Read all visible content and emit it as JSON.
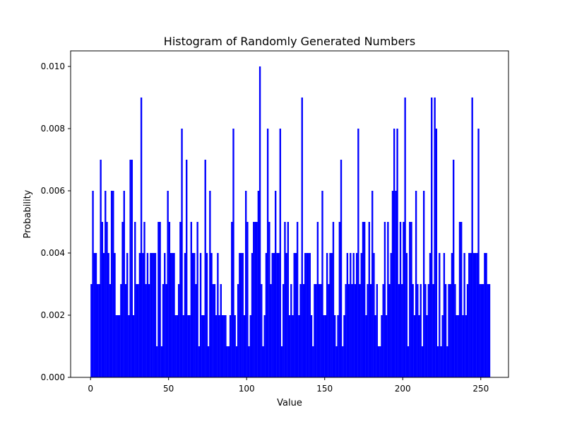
{
  "chart_data": {
    "type": "bar",
    "title": "Histogram of Randomly Generated Numbers",
    "xlabel": "Value",
    "ylabel": "Probability",
    "xlim": [
      -12.75,
      267.75
    ],
    "ylim": [
      0,
      0.0105
    ],
    "bin_start": 0,
    "bin_width": 1,
    "color": "#0000ff",
    "grid": false,
    "x_ticks": [
      0,
      50,
      100,
      150,
      200,
      250
    ],
    "x_tick_labels": [
      "0",
      "50",
      "100",
      "150",
      "200",
      "250"
    ],
    "y_ticks": [
      0,
      0.002,
      0.004,
      0.006,
      0.008,
      0.01
    ],
    "y_tick_labels": [
      "0.000",
      "0.002",
      "0.004",
      "0.006",
      "0.008",
      "0.010"
    ],
    "values": [
      0.003,
      0.006,
      0.004,
      0.004,
      0.003,
      0.003,
      0.007,
      0.005,
      0.004,
      0.006,
      0.005,
      0.004,
      0.003,
      0.006,
      0.006,
      0.004,
      0.002,
      0.002,
      0.002,
      0.003,
      0.005,
      0.006,
      0.003,
      0.004,
      0.002,
      0.007,
      0.007,
      0.002,
      0.005,
      0.003,
      0.003,
      0.004,
      0.009,
      0.004,
      0.005,
      0.003,
      0.004,
      0.003,
      0.004,
      0.004,
      0.004,
      0.004,
      0.001,
      0.005,
      0.005,
      0.001,
      0.003,
      0.004,
      0.003,
      0.006,
      0.005,
      0.004,
      0.004,
      0.004,
      0.002,
      0.002,
      0.003,
      0.005,
      0.008,
      0.002,
      0.004,
      0.007,
      0.002,
      0.002,
      0.005,
      0.004,
      0.004,
      0.003,
      0.005,
      0.001,
      0.004,
      0.002,
      0.002,
      0.007,
      0.004,
      0.001,
      0.006,
      0.004,
      0.003,
      0.003,
      0.002,
      0.004,
      0.002,
      0.003,
      0.002,
      0.002,
      0.002,
      0.001,
      0.001,
      0.002,
      0.005,
      0.008,
      0.002,
      0.001,
      0.003,
      0.004,
      0.004,
      0.004,
      0.002,
      0.006,
      0.005,
      0.001,
      0.002,
      0.004,
      0.005,
      0.005,
      0.005,
      0.006,
      0.01,
      0.003,
      0.001,
      0.002,
      0.004,
      0.008,
      0.005,
      0.003,
      0.004,
      0.004,
      0.006,
      0.004,
      0.004,
      0.008,
      0.001,
      0.003,
      0.005,
      0.004,
      0.005,
      0.002,
      0.003,
      0.002,
      0.004,
      0.004,
      0.005,
      0.002,
      0.003,
      0.009,
      0.003,
      0.004,
      0.004,
      0.004,
      0.004,
      0.002,
      0.001,
      0.003,
      0.003,
      0.005,
      0.003,
      0.003,
      0.006,
      0.002,
      0.002,
      0.004,
      0.003,
      0.004,
      0.004,
      0.005,
      0.002,
      0.001,
      0.002,
      0.005,
      0.007,
      0.001,
      0.002,
      0.003,
      0.004,
      0.003,
      0.004,
      0.003,
      0.004,
      0.003,
      0.004,
      0.008,
      0.003,
      0.004,
      0.005,
      0.005,
      0.002,
      0.003,
      0.005,
      0.003,
      0.006,
      0.004,
      0.002,
      0.003,
      0.001,
      0.001,
      0.002,
      0.003,
      0.005,
      0.002,
      0.005,
      0.003,
      0.004,
      0.006,
      0.008,
      0.006,
      0.008,
      0.003,
      0.005,
      0.003,
      0.005,
      0.009,
      0.004,
      0.001,
      0.005,
      0.005,
      0.003,
      0.002,
      0.006,
      0.003,
      0.002,
      0.003,
      0.001,
      0.006,
      0.003,
      0.002,
      0.003,
      0.004,
      0.009,
      0.003,
      0.009,
      0.008,
      0.001,
      0.004,
      0.001,
      0.002,
      0.004,
      0.003,
      0.001,
      0.003,
      0.003,
      0.004,
      0.007,
      0.003,
      0.002,
      0.002,
      0.005,
      0.005,
      0.002,
      0.004,
      0.002,
      0.003,
      0.004,
      0.004,
      0.009,
      0.004,
      0.004,
      0.004,
      0.008,
      0.003,
      0.003,
      0.003,
      0.004,
      0.004,
      0.003,
      0.003
    ]
  }
}
